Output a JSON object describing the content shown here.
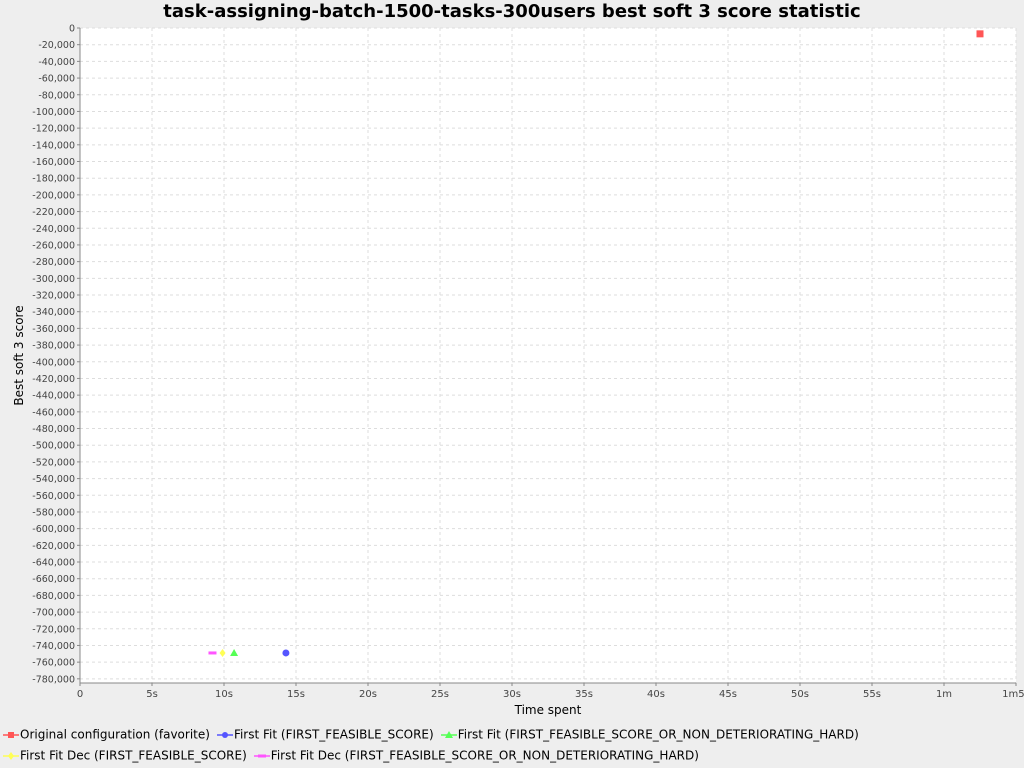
{
  "chart_data": {
    "type": "scatter",
    "title": "task-assigning-batch-1500-tasks-300users best soft 3 score statistic",
    "xlabel": "Time spent",
    "ylabel": "Best soft 3 score",
    "xlim": [
      0,
      65
    ],
    "ylim": [
      -785000,
      0
    ],
    "x_ticks": [
      {
        "value": 0,
        "label": "0"
      },
      {
        "value": 5,
        "label": "5s"
      },
      {
        "value": 10,
        "label": "10s"
      },
      {
        "value": 15,
        "label": "15s"
      },
      {
        "value": 20,
        "label": "20s"
      },
      {
        "value": 25,
        "label": "25s"
      },
      {
        "value": 30,
        "label": "30s"
      },
      {
        "value": 35,
        "label": "35s"
      },
      {
        "value": 40,
        "label": "40s"
      },
      {
        "value": 45,
        "label": "45s"
      },
      {
        "value": 50,
        "label": "50s"
      },
      {
        "value": 55,
        "label": "55s"
      },
      {
        "value": 60,
        "label": "1m"
      },
      {
        "value": 65,
        "label": "1m5s"
      }
    ],
    "y_tick_step": 20000,
    "y_tick_min": -780000,
    "y_tick_max": 0,
    "grid": true,
    "series": [
      {
        "name": "Original configuration (favorite)",
        "color": "#ff5555",
        "marker": "square",
        "points": [
          [
            62.5,
            -7000
          ]
        ]
      },
      {
        "name": "First Fit (FIRST_FEASIBLE_SCORE)",
        "color": "#5555ff",
        "marker": "circle",
        "points": [
          [
            14.3,
            -749000
          ]
        ]
      },
      {
        "name": "First Fit (FIRST_FEASIBLE_SCORE_OR_NON_DETERIORATING_HARD)",
        "color": "#55ff55",
        "marker": "triangle",
        "points": [
          [
            10.7,
            -749000
          ]
        ]
      },
      {
        "name": "First Fit Dec (FIRST_FEASIBLE_SCORE)",
        "color": "#ffff55",
        "marker": "diamond",
        "points": [
          [
            9.9,
            -749000
          ]
        ]
      },
      {
        "name": "First Fit Dec (FIRST_FEASIBLE_SCORE_OR_NON_DETERIORATING_HARD)",
        "color": "#ff55ff",
        "marker": "hbar",
        "points": [
          [
            9.2,
            -749000
          ]
        ]
      }
    ]
  }
}
